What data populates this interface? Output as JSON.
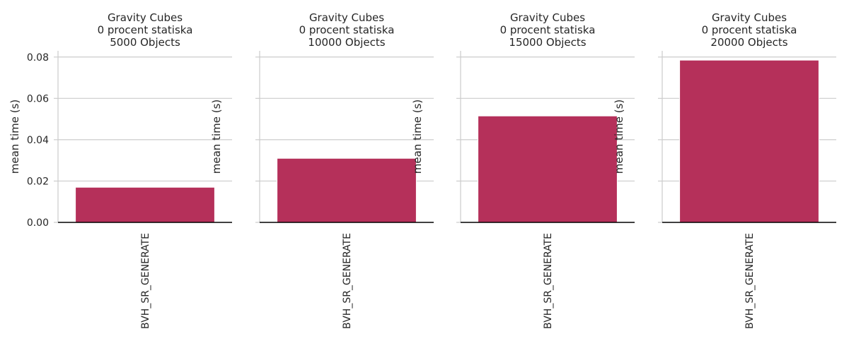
{
  "colors": {
    "bar": "#b5305a",
    "grid": "#cccccc",
    "axis": "#000000"
  },
  "chart_data": [
    {
      "type": "bar",
      "title": "Gravity Cubes\n0 procent statiska\n5000 Objects",
      "xlabel": "",
      "ylabel": "mean time (s)",
      "categories": [
        "BVH_SR_GENERATE"
      ],
      "values": [
        0.017
      ],
      "ylim": [
        0,
        0.083
      ],
      "yticks": [
        "0.00",
        "0.02",
        "0.04",
        "0.06",
        "0.08"
      ],
      "show_ytick_labels": true,
      "grid": true
    },
    {
      "type": "bar",
      "title": "Gravity Cubes\n0 procent statiska\n10000 Objects",
      "xlabel": "",
      "ylabel": "mean time (s)",
      "categories": [
        "BVH_SR_GENERATE"
      ],
      "values": [
        0.031
      ],
      "ylim": [
        0,
        0.083
      ],
      "yticks": [
        "0.00",
        "0.02",
        "0.04",
        "0.06",
        "0.08"
      ],
      "show_ytick_labels": false,
      "grid": true
    },
    {
      "type": "bar",
      "title": "Gravity Cubes\n0 procent statiska\n15000 Objects",
      "xlabel": "",
      "ylabel": "mean time (s)",
      "categories": [
        "BVH_SR_GENERATE"
      ],
      "values": [
        0.0515
      ],
      "ylim": [
        0,
        0.083
      ],
      "yticks": [
        "0.00",
        "0.02",
        "0.04",
        "0.06",
        "0.08"
      ],
      "show_ytick_labels": false,
      "grid": true
    },
    {
      "type": "bar",
      "title": "Gravity Cubes\n0 procent statiska\n20000 Objects",
      "xlabel": "",
      "ylabel": "mean time (s)",
      "categories": [
        "BVH_SR_GENERATE"
      ],
      "values": [
        0.0785
      ],
      "ylim": [
        0,
        0.083
      ],
      "yticks": [
        "0.00",
        "0.02",
        "0.04",
        "0.06",
        "0.08"
      ],
      "show_ytick_labels": false,
      "grid": true
    }
  ]
}
